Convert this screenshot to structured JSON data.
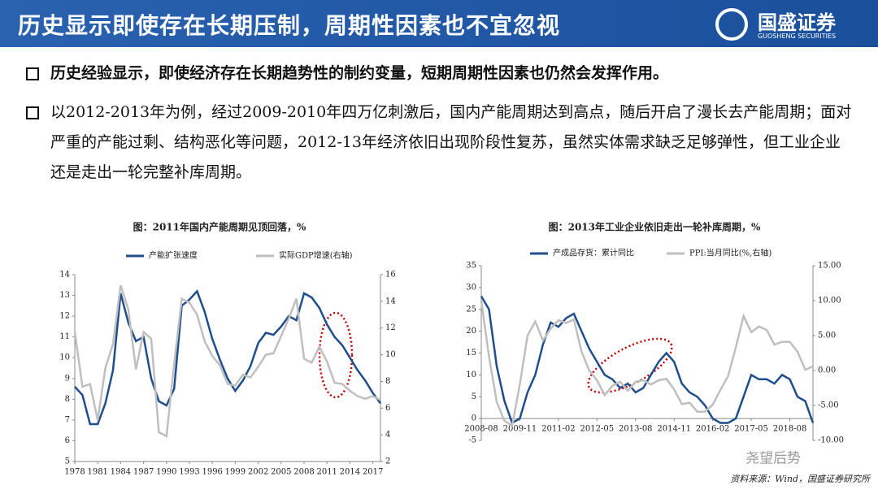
{
  "header": {
    "title": "历史显示即使存在长期压制，周期性因素也不宜忽视",
    "logo": "国盛证券",
    "logo_sub": "GUOSHENG SECURITIES"
  },
  "bullets": [
    "历史经验显示，即使经济存在长期趋势性的制约变量，短期周期性因素也仍然会发挥作用。",
    "以2012-2013年为例，经过2009-2010年四万亿刺激后，国内产能周期达到高点，随后开启了漫长去产能周期；面对严重的产能过剩、结构恶化等问题，2012-13年经济依旧出现阶段性复苏，虽然实体需求缺乏足够弹性，但工业企业还是走出一轮完整补库周期。"
  ],
  "chart_data": [
    {
      "type": "line",
      "title": "图：2011年国内产能周期见顶回落，%",
      "categories": [
        "1978",
        null,
        null,
        "1981",
        null,
        null,
        "1984",
        null,
        null,
        "1987",
        null,
        null,
        "1990",
        null,
        null,
        "1993",
        null,
        null,
        "1996",
        null,
        null,
        "1999",
        null,
        null,
        "2002",
        null,
        null,
        "2005",
        null,
        null,
        "2008",
        null,
        null,
        "2011",
        null,
        null,
        "2014",
        null,
        null,
        "2017",
        null
      ],
      "series": [
        {
          "name": "产能扩张速度",
          "color": "#1f4e8c",
          "values": [
            8.6,
            8.2,
            6.8,
            6.8,
            7.8,
            9.4,
            13.1,
            11.7,
            10.8,
            11.0,
            9.0,
            7.9,
            7.7,
            8.5,
            12.5,
            12.8,
            13.2,
            12.2,
            10.9,
            9.9,
            9.0,
            8.4,
            8.9,
            9.6,
            10.7,
            11.2,
            11.1,
            11.5,
            12.0,
            11.8,
            13.1,
            12.9,
            12.4,
            11.6,
            11.0,
            10.6,
            10.0,
            9.4,
            8.9,
            8.3,
            7.8
          ]
        },
        {
          "name": "实际GDP增速(右轴)",
          "color": "#bfbfbf",
          "axis": "y2",
          "values": [
            11.7,
            7.6,
            7.8,
            5.1,
            9.0,
            10.8,
            15.2,
            13.4,
            8.9,
            11.7,
            11.2,
            4.2,
            3.9,
            9.3,
            14.2,
            13.9,
            13.0,
            11.0,
            9.9,
            9.2,
            7.8,
            7.7,
            8.5,
            8.3,
            9.1,
            10.0,
            10.1,
            11.4,
            12.7,
            14.2,
            9.7,
            9.4,
            10.6,
            9.5,
            7.9,
            7.8,
            7.3,
            6.9,
            6.7,
            6.9,
            6.6
          ]
        }
      ],
      "ylim": [
        5,
        14
      ],
      "yticks": [
        5,
        6,
        7,
        8,
        9,
        10,
        11,
        12,
        13,
        14
      ],
      "y2lim": [
        2,
        16
      ],
      "y2ticks": [
        2,
        4,
        6,
        8,
        10,
        12,
        14,
        16
      ]
    },
    {
      "type": "line",
      "title": "图：2013年工业企业依旧走出一轮补库周期，%",
      "categories": [
        "2008-08",
        null,
        null,
        null,
        null,
        "2009-11",
        null,
        null,
        null,
        null,
        "2011-02",
        null,
        null,
        null,
        null,
        "2012-05",
        null,
        null,
        null,
        null,
        "2013-08",
        null,
        null,
        null,
        null,
        "2014-11",
        null,
        null,
        null,
        null,
        "2016-02",
        null,
        null,
        null,
        null,
        "2017-05",
        null,
        null,
        null,
        null,
        "2018-08",
        null,
        null,
        null
      ],
      "series": [
        {
          "name": "产成品存货：累计同比",
          "color": "#1f4e8c",
          "values": [
            28,
            25,
            12,
            4,
            -1,
            0,
            6,
            10,
            17,
            22,
            21,
            23,
            24,
            20,
            16,
            13,
            10,
            9,
            7,
            8,
            6,
            7,
            10,
            13,
            15,
            13,
            8,
            6,
            5,
            3,
            0,
            -1,
            -1,
            0,
            5,
            10,
            9,
            9,
            8,
            10,
            9,
            5,
            4,
            -1
          ]
        },
        {
          "name": "PPI:当月同比(%,右轴)",
          "color": "#bfbfbf",
          "axis": "y2",
          "values": [
            10,
            2,
            -4.5,
            -7.2,
            -7.9,
            -2,
            5,
            7,
            4.3,
            6,
            7.2,
            6.8,
            7.3,
            2.7,
            0,
            -1.4,
            -3.5,
            -2.2,
            -1.6,
            -2.9,
            -1.6,
            -1.4,
            -2,
            -1.4,
            -1.2,
            -2.7,
            -4.8,
            -4.6,
            -5.9,
            -5.9,
            -4.9,
            -2.8,
            -0.8,
            3.3,
            7.8,
            5.5,
            6.3,
            5.8,
            3.7,
            4.1,
            4.1,
            2.7,
            0.1,
            0.6
          ]
        }
      ],
      "ylim": [
        -5,
        35
      ],
      "yticks": [
        -5,
        0,
        5,
        10,
        15,
        20,
        25,
        30,
        35
      ],
      "y2lim": [
        -10,
        15
      ],
      "y2ticks": [
        {
          "value": -10,
          "label": "-10.00"
        },
        {
          "value": -5,
          "label": "-5.00"
        },
        {
          "value": 0,
          "label": "0.00"
        },
        {
          "value": 5,
          "label": "5.00"
        },
        {
          "value": 10,
          "label": "10.00"
        },
        {
          "value": 15,
          "label": "15.00"
        }
      ]
    }
  ],
  "source": "资料来源：Wind，国盛证券研究所",
  "watermark": "尧望后势"
}
